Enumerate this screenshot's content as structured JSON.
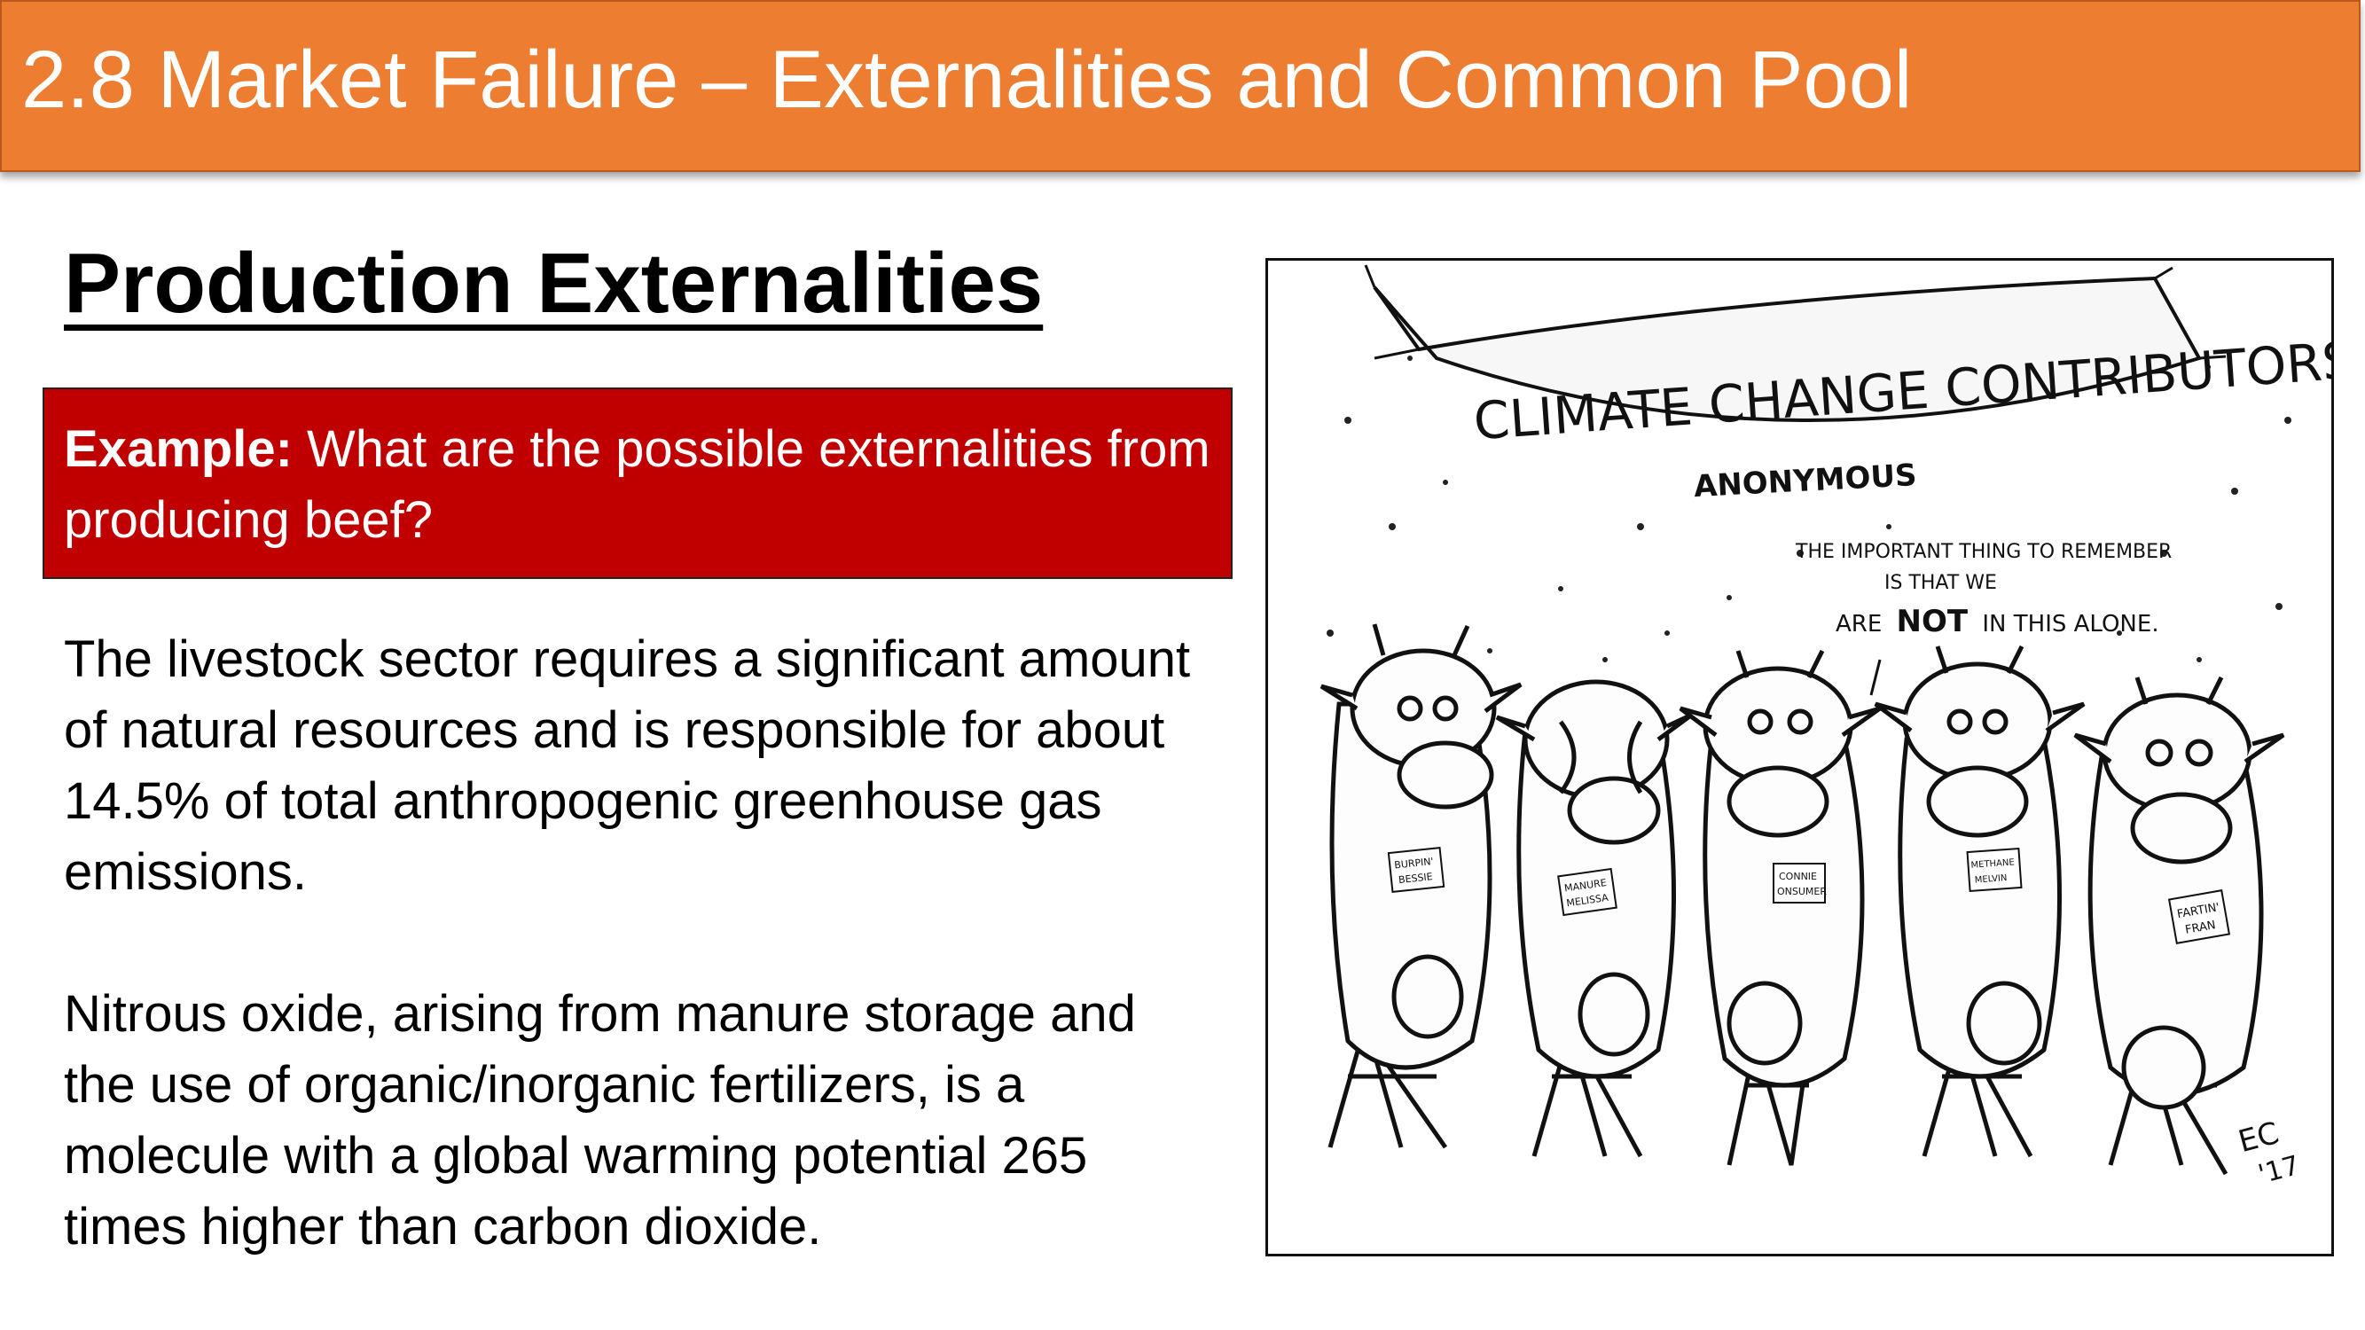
{
  "header": {
    "title": "2.8 Market Failure – Externalities and Common Pool"
  },
  "section": {
    "heading": "Production Externalities"
  },
  "example": {
    "label": "Example:",
    "question": " What are the possible externalities from producing beef?"
  },
  "body": {
    "paragraph1": "The livestock sector requires a significant amount of natural resources and is responsible for about 14.5% of total anthropogenic greenhouse gas emissions.",
    "paragraph2": "Nitrous oxide, arising from manure storage and the use of organic/inorganic fertilizers, is a molecule with a global warming potential 265 times higher than carbon dioxide."
  },
  "cartoon": {
    "banner_title": "CLIMATE CHANGE CONTRIBUTORS",
    "banner_subtitle": "ANONYMOUS",
    "speech_line1": "THE IMPORTANT THING TO REMEMBER",
    "speech_line2": "IS THAT WE",
    "speech_line3_pre": "ARE",
    "speech_line3_bold": "NOT",
    "speech_line3_post": "IN THIS ALONE.",
    "cows": [
      {
        "tag_line1": "BURPIN'",
        "tag_line2": "BESSIE"
      },
      {
        "tag_line1": "MANURE",
        "tag_line2": "MELISSA"
      },
      {
        "tag_line1": "CONNIE",
        "tag_line2": "ONSUMER"
      },
      {
        "tag_line1": "METHANE",
        "tag_line2": "MELVIN"
      },
      {
        "tag_line1": "FARTIN'",
        "tag_line2": "FRAN"
      }
    ],
    "signature_line1": "EC",
    "signature_line2": "'17"
  }
}
